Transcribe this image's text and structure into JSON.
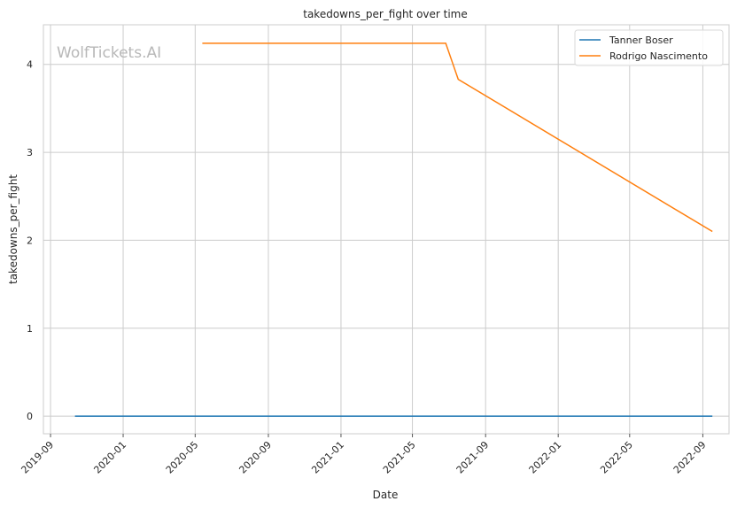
{
  "chart_data": {
    "type": "line",
    "title": "takedowns_per_fight over time",
    "xlabel": "Date",
    "ylabel": "takedowns_per_fight",
    "watermark": "WolfTickets.AI",
    "x_ticks": [
      "2019-09",
      "2020-01",
      "2020-05",
      "2020-09",
      "2021-01",
      "2021-05",
      "2021-09",
      "2022-01",
      "2022-05",
      "2022-09"
    ],
    "y_ticks": [
      "0",
      "1",
      "2",
      "3",
      "4"
    ],
    "ylim": [
      -0.2,
      4.45
    ],
    "xlim": [
      "2019-08-20",
      "2022-10-15"
    ],
    "grid": true,
    "legend_position": "top-right",
    "series": [
      {
        "name": "Tanner Boser",
        "color": "#1f77b4",
        "points": [
          {
            "x": "2019-10-12",
            "y": 0
          },
          {
            "x": "2022-09-17",
            "y": 0
          }
        ]
      },
      {
        "name": "Rodrigo Nascimento",
        "color": "#ff7f0e",
        "points": [
          {
            "x": "2020-05-13",
            "y": 4.24
          },
          {
            "x": "2021-06-26",
            "y": 4.24
          },
          {
            "x": "2021-07-17",
            "y": 3.83
          },
          {
            "x": "2022-09-17",
            "y": 2.1
          }
        ]
      }
    ]
  }
}
